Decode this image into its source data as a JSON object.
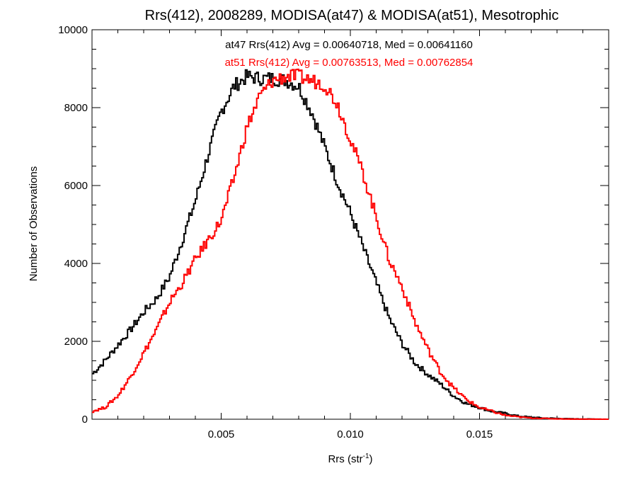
{
  "chart_data": {
    "type": "histogram",
    "title": "Rrs(412), 2008289, MODISA(at47) & MODISA(at51), Mesotrophic",
    "xlabel": "Rrs (str",
    "xlabel_sup": "-1",
    "xlabel_close": ")",
    "ylabel": "Number of Observations",
    "xlim": [
      0.0,
      0.02
    ],
    "ylim": [
      0,
      10000
    ],
    "x_ticks": [
      0.005,
      0.01,
      0.015
    ],
    "x_tick_labels": [
      "0.005",
      "0.010",
      "0.015"
    ],
    "y_ticks": [
      0,
      2000,
      4000,
      6000,
      8000,
      10000
    ],
    "y_tick_labels": [
      "0",
      "2000",
      "4000",
      "6000",
      "8000",
      "10000"
    ],
    "grid": false,
    "annotations": [
      {
        "text": "at47 Rrs(412) Avg = 0.00640718, Med = 0.00641160",
        "color": "#000000"
      },
      {
        "text": "at51 Rrs(412) Avg = 0.00763513, Med = 0.00762854",
        "color": "#ff0000"
      }
    ],
    "series": [
      {
        "color": "#000000",
        "x": [
          0.0,
          0.0005,
          0.001,
          0.0015,
          0.002,
          0.0025,
          0.003,
          0.0035,
          0.004,
          0.0045,
          0.005,
          0.0055,
          0.006,
          0.0065,
          0.007,
          0.0075,
          0.008,
          0.0085,
          0.009,
          0.0095,
          0.01,
          0.0105,
          0.011,
          0.0115,
          0.012,
          0.0125,
          0.013,
          0.0135,
          0.014,
          0.0145,
          0.015,
          0.0155,
          0.016,
          0.0165,
          0.017,
          0.0175,
          0.018,
          0.0185,
          0.019,
          0.0195,
          0.02
        ],
        "y": [
          1150,
          1500,
          1900,
          2300,
          2750,
          3100,
          3650,
          4600,
          5600,
          6800,
          7900,
          8550,
          8800,
          8750,
          8750,
          8700,
          8550,
          7900,
          7000,
          6100,
          5300,
          4400,
          3500,
          2600,
          1950,
          1450,
          1150,
          900,
          600,
          400,
          300,
          200,
          150,
          80,
          50,
          30,
          20,
          10,
          5,
          3,
          0
        ]
      },
      {
        "color": "#ff0000",
        "x": [
          0.0,
          0.0005,
          0.001,
          0.0015,
          0.002,
          0.0025,
          0.003,
          0.0035,
          0.004,
          0.0045,
          0.005,
          0.0055,
          0.006,
          0.0065,
          0.007,
          0.0075,
          0.008,
          0.0085,
          0.009,
          0.0095,
          0.01,
          0.0105,
          0.011,
          0.0115,
          0.012,
          0.0125,
          0.013,
          0.0135,
          0.014,
          0.0145,
          0.015,
          0.0155,
          0.016,
          0.0165,
          0.017,
          0.0175,
          0.018,
          0.0185,
          0.019,
          0.0195,
          0.02
        ],
        "y": [
          200,
          300,
          600,
          1100,
          1700,
          2300,
          3000,
          3500,
          4100,
          4600,
          5100,
          6200,
          7500,
          8300,
          8700,
          8800,
          8800,
          8700,
          8600,
          8100,
          7200,
          6300,
          5200,
          4100,
          3400,
          2500,
          1800,
          1200,
          800,
          500,
          300,
          200,
          100,
          60,
          30,
          20,
          10,
          5,
          3,
          2,
          0
        ]
      }
    ]
  }
}
